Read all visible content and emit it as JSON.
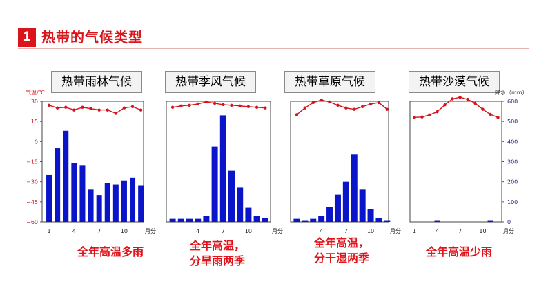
{
  "header": {
    "number": "1",
    "title": "热带的气候类型"
  },
  "axis_labels": {
    "temp_unit": "气温/℃",
    "precip_unit": "降水（mm）",
    "month_unit": "月分"
  },
  "colors": {
    "bar": "#0a14c8",
    "temp_line": "#d4141c",
    "caption": "#e0151c",
    "header": "#d9141b"
  },
  "chart_data": [
    {
      "type": "bar",
      "title": "热带雨林气候",
      "caption": [
        "全年高温多雨"
      ],
      "x": [
        1,
        2,
        3,
        4,
        5,
        6,
        7,
        8,
        9,
        10,
        11,
        12
      ],
      "x_ticks": [
        "1",
        "4",
        "7",
        "10"
      ],
      "ylabel": "气温/℃",
      "y_ticks": [
        "30",
        "15",
        "0",
        "−15",
        "−30",
        "−45",
        "−60"
      ],
      "ylim": [
        -60,
        30
      ],
      "series": [
        {
          "kind": "bar",
          "values": [
            -25,
            -5,
            8,
            -16,
            -18,
            -36,
            -40,
            -31,
            -32,
            -29,
            -27,
            -33
          ]
        },
        {
          "kind": "line",
          "values": [
            27,
            25,
            25.5,
            23.5,
            25.5,
            24.5,
            23.5,
            23.5,
            21,
            25,
            26,
            23.5
          ]
        }
      ]
    },
    {
      "type": "bar",
      "title": "热带季风气候",
      "caption": [
        "全年高温，",
        "分旱雨两季"
      ],
      "x": [
        1,
        2,
        3,
        4,
        5,
        6,
        7,
        8,
        9,
        10,
        11,
        12
      ],
      "x_ticks": [
        "4",
        "7",
        "10"
      ],
      "series": [
        {
          "kind": "bar",
          "values": [
            15,
            15,
            15,
            15,
            30,
            375,
            530,
            255,
            170,
            70,
            30,
            18
          ]
        },
        {
          "kind": "line",
          "values": [
            25.5,
            26.5,
            27,
            28,
            29.5,
            28.5,
            27.5,
            27,
            26.5,
            26,
            25.5,
            25
          ]
        }
      ]
    },
    {
      "type": "bar",
      "title": "热带草原气候",
      "caption": [
        "全年高温，",
        "分干湿两季"
      ],
      "x": [
        1,
        2,
        3,
        4,
        5,
        6,
        7,
        8,
        9,
        10,
        11,
        12
      ],
      "x_ticks": [
        "4",
        "7",
        "10"
      ],
      "series": [
        {
          "kind": "bar",
          "values": [
            15,
            5,
            15,
            30,
            75,
            135,
            200,
            335,
            160,
            65,
            20,
            5
          ]
        },
        {
          "kind": "line",
          "values": [
            20,
            25,
            29,
            31,
            29.5,
            27,
            25,
            24,
            26,
            28,
            29,
            24
          ]
        }
      ]
    },
    {
      "type": "bar",
      "title": "热带沙漠气候",
      "caption": [
        "全年高温少雨"
      ],
      "x": [
        1,
        2,
        3,
        4,
        5,
        6,
        7,
        8,
        9,
        10,
        11,
        12
      ],
      "x_ticks": [
        "1",
        "4",
        "7",
        "10"
      ],
      "ylabel": "降水（mm）",
      "y_ticks": [
        "600",
        "500",
        "400",
        "300",
        "200",
        "100",
        "0"
      ],
      "ylim": [
        0,
        600
      ],
      "series": [
        {
          "kind": "bar",
          "values": [
            0,
            0,
            0,
            5,
            0,
            0,
            0,
            0,
            0,
            0,
            5,
            0
          ]
        },
        {
          "kind": "line",
          "values": [
            520,
            522,
            532,
            548,
            582,
            612,
            620,
            610,
            590,
            560,
            535,
            520
          ]
        }
      ]
    }
  ]
}
